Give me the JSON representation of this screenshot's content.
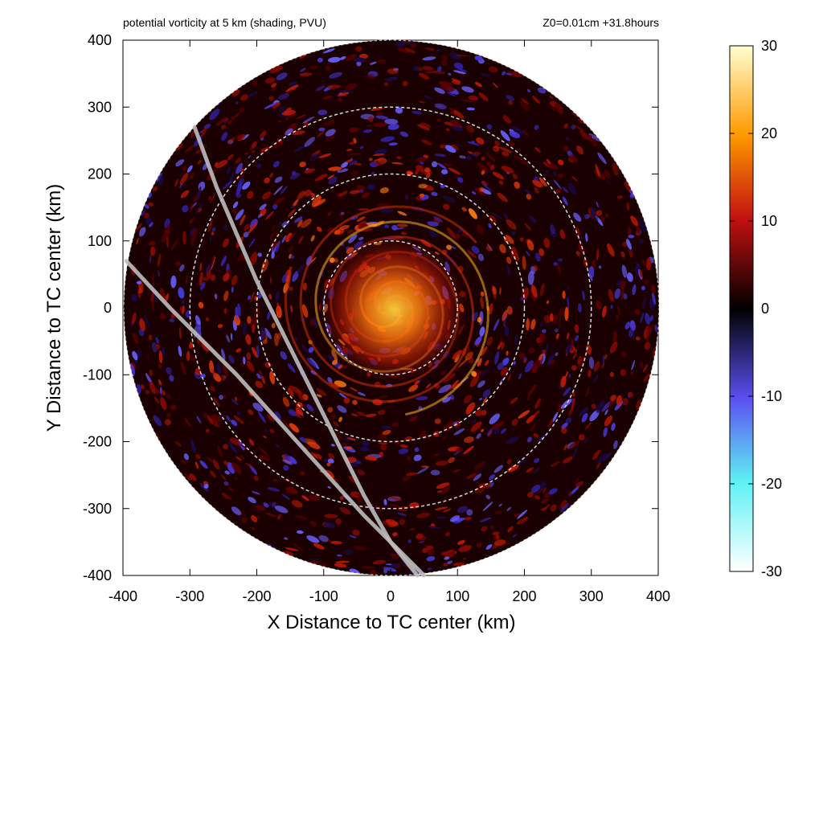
{
  "chart_data": {
    "type": "heatmap",
    "title_left": "potential vorticity at 5 km (shading, PVU)",
    "title_right": "Z0=0.01cm  +31.8hours",
    "xlabel": "X Distance to TC center (km)",
    "ylabel": "Y Distance to TC center (km)",
    "xlim": [
      -400,
      400
    ],
    "ylim": [
      -400,
      400
    ],
    "x_ticks": [
      -400,
      -300,
      -200,
      -100,
      0,
      100,
      200,
      300,
      400
    ],
    "y_ticks": [
      -400,
      -300,
      -200,
      -100,
      0,
      100,
      200,
      300,
      400
    ],
    "domain_radius_km": 400,
    "range_rings_km": [
      100,
      200,
      300
    ],
    "tracks": [
      {
        "points": [
          [
            -293,
            270
          ],
          [
            -260,
            180
          ],
          [
            -200,
            40
          ],
          [
            -120,
            -120
          ],
          [
            -40,
            -280
          ],
          [
            0,
            -350
          ],
          [
            40,
            -400
          ]
        ]
      },
      {
        "points": [
          [
            -395,
            70
          ],
          [
            -330,
            0
          ],
          [
            -230,
            -100
          ],
          [
            -140,
            -200
          ],
          [
            -40,
            -310
          ],
          [
            20,
            -370
          ],
          [
            50,
            -400
          ]
        ]
      }
    ],
    "colorbar": {
      "min": -30,
      "max": 30,
      "ticks": [
        30,
        20,
        10,
        0,
        -10,
        -20,
        -30
      ],
      "colors": [
        "#ffffff",
        "#5ef2f5",
        "#5a4ff0",
        "#000000",
        "#c21010",
        "#ff9900",
        "#ffffd0"
      ]
    }
  }
}
